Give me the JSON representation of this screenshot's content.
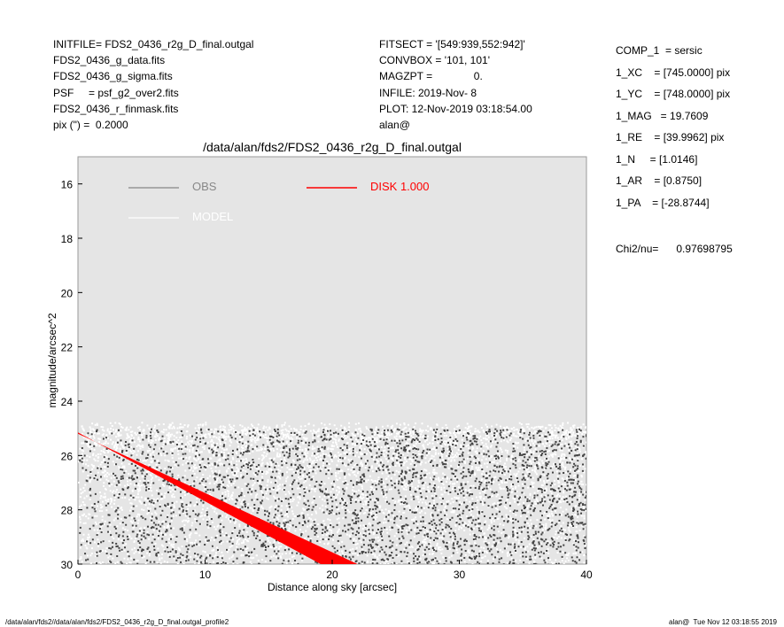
{
  "header_left": [
    "INITFILE= FDS2_0436_r2g_D_final.outgal",
    "FDS2_0436_g_data.fits",
    "FDS2_0436_g_sigma.fits",
    "PSF     = psf_g2_over2.fits",
    "FDS2_0436_r_finmask.fits",
    "pix (\") =  0.2000"
  ],
  "header_mid": [
    "FITSECT = '[549:939,552:942]'",
    "CONVBOX = '101, 101'",
    "MAGZPT =              0.",
    "INFILE: 2019-Nov- 8",
    "PLOT: 12-Nov-2019 03:18:54.00",
    "alan@"
  ],
  "params": [
    "COMP_1  = sersic",
    "1_XC    = [745.0000] pix",
    "1_YC    = [748.0000] pix",
    "1_MAG   = 19.7609",
    "1_RE    = [39.9962] pix",
    "1_N     = [1.0146]",
    "1_AR    = [0.8750]",
    "1_PA    = [-28.8744]"
  ],
  "chi2": "Chi2/nu=      0.97698795",
  "footer_left": "/data/alan/fds2//data/alan/fds2/FDS2_0436_r2g_D_final.outgal_profile2",
  "footer_right": "alan@  Tue Nov 12 03:18:55 2019",
  "chart_data": {
    "type": "scatter",
    "title": "/data/alan/fds2/FDS2_0436_r2g_D_final.outgal",
    "xlabel": "Distance along sky [arcsec]",
    "ylabel": "magnitude/arcsec^2",
    "xlim": [
      0,
      40
    ],
    "ylim": [
      30,
      15
    ],
    "y_inverted": true,
    "xticks": [
      "0",
      "10",
      "20",
      "30",
      "40"
    ],
    "yticks": [
      "16",
      "18",
      "20",
      "22",
      "24",
      "26",
      "28",
      "30"
    ],
    "background": "#e5e5e5",
    "legend": [
      {
        "name": "OBS",
        "color": "#888888"
      },
      {
        "name": "MODEL",
        "color": "#ffffff"
      },
      {
        "name": "DISK  1.000",
        "color": "#ff0000"
      }
    ],
    "series": [
      {
        "name": "OBS",
        "color": "#444444",
        "description_range": {
          "x": [
            0,
            40
          ],
          "y": [
            25,
            30
          ]
        }
      },
      {
        "name": "MODEL",
        "color": "#ffffff",
        "description_range": {
          "x": [
            0,
            40
          ],
          "y": [
            24.7,
            30
          ]
        }
      },
      {
        "name": "DISK  1.000",
        "color": "#ff0000",
        "band_upper": [
          [
            0,
            25.15
          ],
          [
            19.1,
            30
          ]
        ],
        "band_lower": [
          [
            0,
            25.2
          ],
          [
            22.0,
            30
          ]
        ]
      }
    ]
  }
}
